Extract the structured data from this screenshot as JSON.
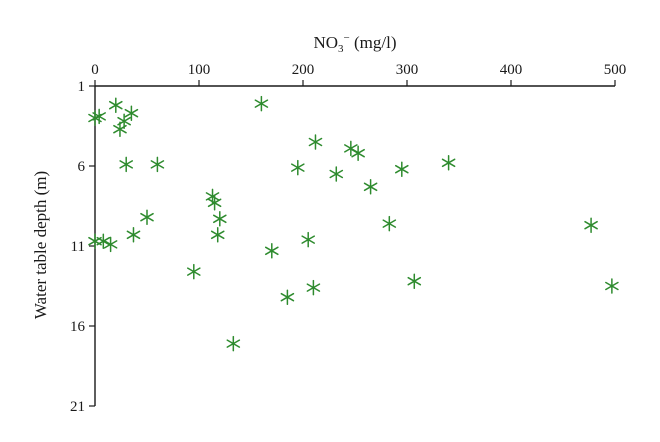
{
  "chart_data": {
    "type": "scatter",
    "title": "",
    "xlabel": {
      "base": "NO",
      "sub": "3",
      "sup": "−",
      "unit": " (mg/l)"
    },
    "ylabel": "Water table depth (m)",
    "xlim": [
      0,
      500
    ],
    "ylim": [
      1,
      21
    ],
    "y_inverted": true,
    "x_axis_position": "top",
    "x_ticks": [
      0,
      100,
      200,
      300,
      400,
      500
    ],
    "y_ticks": [
      1,
      6,
      11,
      16,
      21
    ],
    "grid": false,
    "legend": "none",
    "marker": "asterisk",
    "color": "#2e8b2e",
    "points": [
      {
        "x": 0,
        "y": 3.0
      },
      {
        "x": 4,
        "y": 2.9
      },
      {
        "x": 20,
        "y": 2.2
      },
      {
        "x": 35,
        "y": 2.7
      },
      {
        "x": 28,
        "y": 3.2
      },
      {
        "x": 24,
        "y": 3.7
      },
      {
        "x": 30,
        "y": 5.9
      },
      {
        "x": 60,
        "y": 5.9
      },
      {
        "x": 160,
        "y": 2.1
      },
      {
        "x": 212,
        "y": 4.5
      },
      {
        "x": 195,
        "y": 6.1
      },
      {
        "x": 232,
        "y": 6.5
      },
      {
        "x": 246,
        "y": 4.9
      },
      {
        "x": 253,
        "y": 5.2
      },
      {
        "x": 265,
        "y": 7.3
      },
      {
        "x": 295,
        "y": 6.2
      },
      {
        "x": 340,
        "y": 5.8
      },
      {
        "x": 113,
        "y": 7.9
      },
      {
        "x": 115,
        "y": 8.3
      },
      {
        "x": 120,
        "y": 9.3
      },
      {
        "x": 118,
        "y": 10.3
      },
      {
        "x": 50,
        "y": 9.2
      },
      {
        "x": 37,
        "y": 10.3
      },
      {
        "x": 0,
        "y": 10.7
      },
      {
        "x": 8,
        "y": 10.7
      },
      {
        "x": 15,
        "y": 10.9
      },
      {
        "x": 283,
        "y": 9.6
      },
      {
        "x": 205,
        "y": 10.6
      },
      {
        "x": 170,
        "y": 11.3
      },
      {
        "x": 477,
        "y": 9.7
      },
      {
        "x": 95,
        "y": 12.6
      },
      {
        "x": 307,
        "y": 13.2
      },
      {
        "x": 210,
        "y": 13.6
      },
      {
        "x": 497,
        "y": 13.5
      },
      {
        "x": 185,
        "y": 14.2
      },
      {
        "x": 133,
        "y": 17.1
      }
    ]
  }
}
